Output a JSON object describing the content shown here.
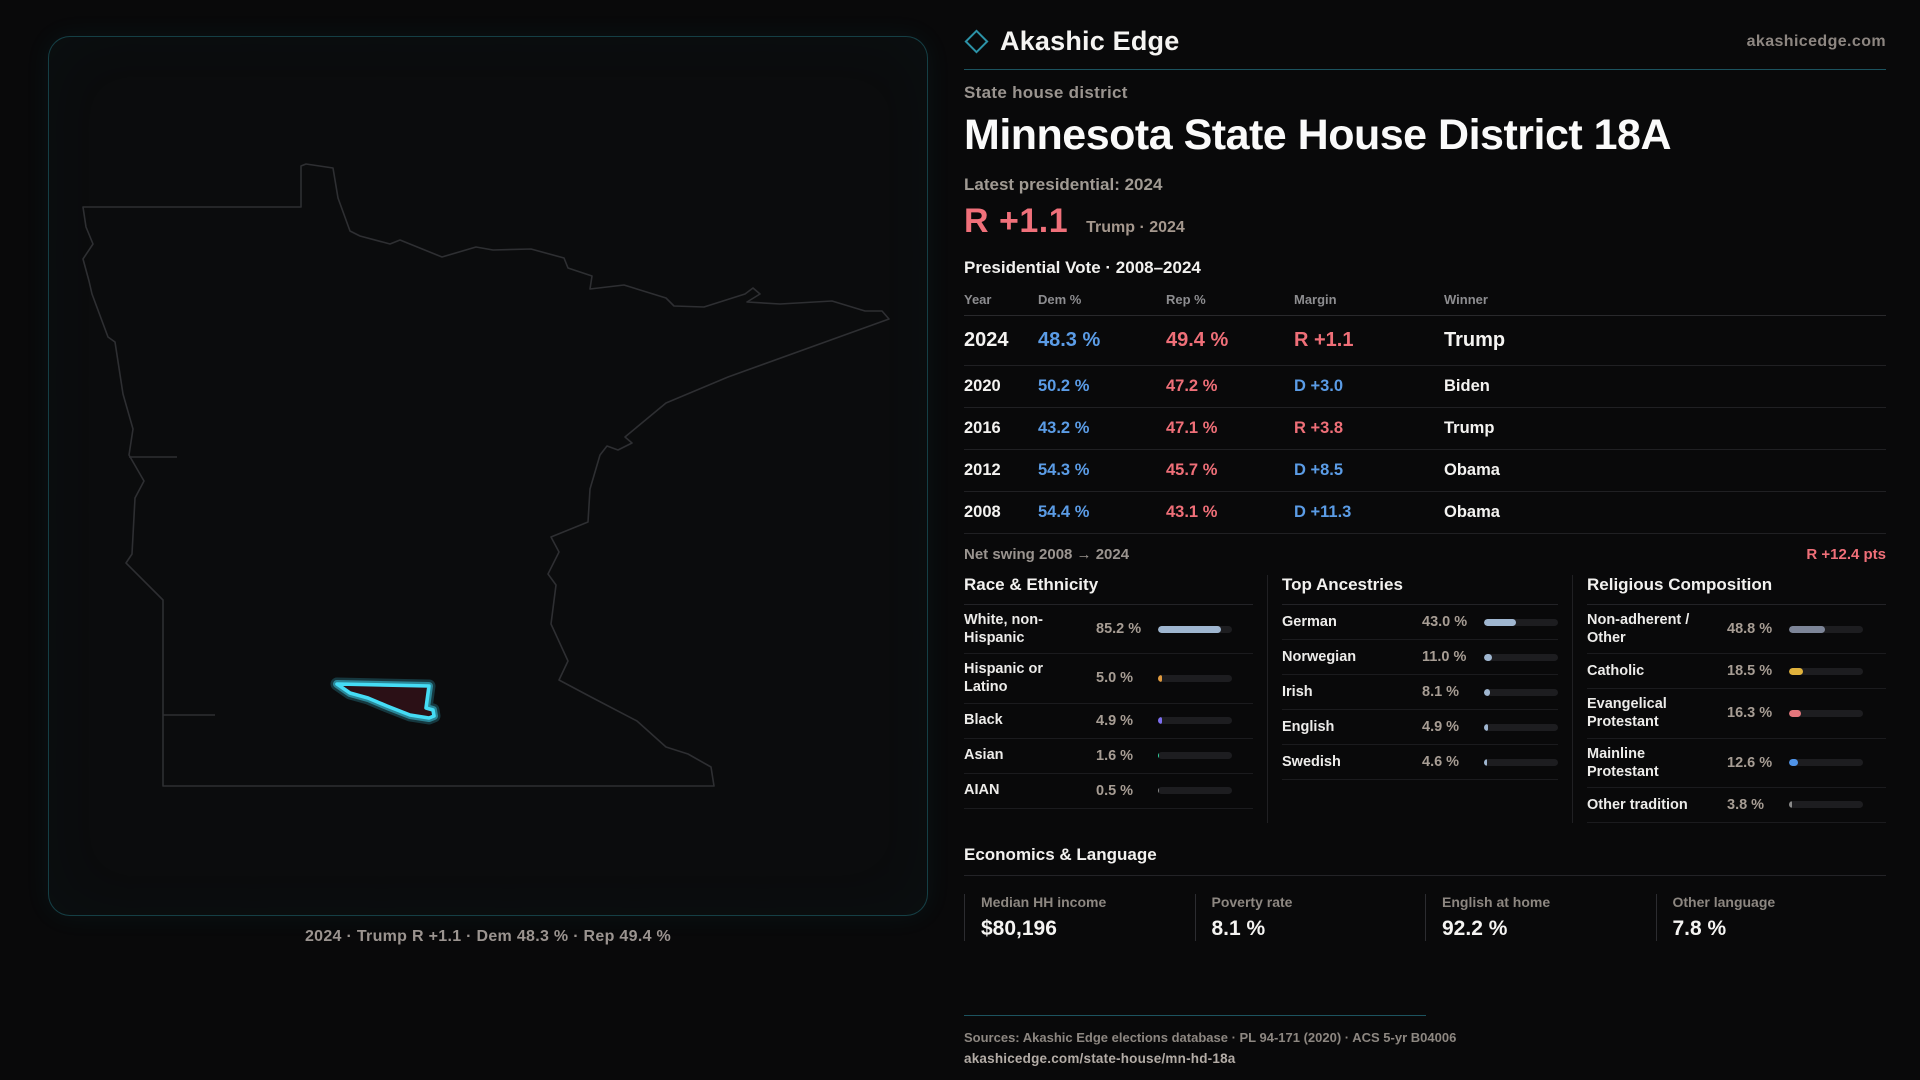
{
  "brand": {
    "name": "Akashic Edge",
    "site": "akashicedge.com",
    "logo_icon": "diamond-outline",
    "accent_teal": "#2c93a8",
    "accent_red": "#ef6f78",
    "accent_blue": "#5b9ce6"
  },
  "header": {
    "kicker": "State house district",
    "title": "Minnesota State House District 18A",
    "latest_label": "Latest presidential: 2024",
    "margin_value": "R +1.1",
    "margin_caption": "Trump · 2024"
  },
  "vote_table": {
    "title": "Presidential Vote · 2008–2024",
    "columns": {
      "year": "Year",
      "dem": "Dem %",
      "rep": "Rep %",
      "margin": "Margin",
      "winner": "Winner"
    },
    "rows": [
      {
        "year": "2024",
        "dem": "48.3 %",
        "rep": "49.4 %",
        "margin": "R +1.1",
        "party": "R",
        "winner": "Trump"
      },
      {
        "year": "2020",
        "dem": "50.2 %",
        "rep": "47.2 %",
        "margin": "D +3.0",
        "party": "D",
        "winner": "Biden"
      },
      {
        "year": "2016",
        "dem": "43.2 %",
        "rep": "47.1 %",
        "margin": "R +3.8",
        "party": "R",
        "winner": "Trump"
      },
      {
        "year": "2012",
        "dem": "54.3 %",
        "rep": "45.7 %",
        "margin": "D +8.5",
        "party": "D",
        "winner": "Obama"
      },
      {
        "year": "2008",
        "dem": "54.4 %",
        "rep": "43.1 %",
        "margin": "D +11.3",
        "party": "D",
        "winner": "Obama"
      }
    ]
  },
  "net_swing": {
    "label": "Net swing 2008 → 2024",
    "value": "R +12.4 pts"
  },
  "race": {
    "title": "Race & Ethnicity",
    "rows": [
      {
        "label": "White, non-Hispanic",
        "value": "85.2 %",
        "pct": 85.2,
        "color": "#9fb6d0"
      },
      {
        "label": "Hispanic or Latino",
        "value": "5.0 %",
        "pct": 5.0,
        "color": "#e09a3e"
      },
      {
        "label": "Black",
        "value": "4.9 %",
        "pct": 4.9,
        "color": "#7d6ef0"
      },
      {
        "label": "Asian",
        "value": "1.6 %",
        "pct": 1.6,
        "color": "#2fd4a0"
      },
      {
        "label": "AIAN",
        "value": "0.5 %",
        "pct": 0.5,
        "color": "#8a8a8a"
      }
    ]
  },
  "ancestries": {
    "title": "Top Ancestries",
    "rows": [
      {
        "label": "German",
        "value": "43.0 %",
        "pct": 43.0,
        "color": "#9fb6d0"
      },
      {
        "label": "Norwegian",
        "value": "11.0 %",
        "pct": 11.0,
        "color": "#9fb6d0"
      },
      {
        "label": "Irish",
        "value": "8.1 %",
        "pct": 8.1,
        "color": "#9fb6d0"
      },
      {
        "label": "English",
        "value": "4.9 %",
        "pct": 4.9,
        "color": "#9fb6d0"
      },
      {
        "label": "Swedish",
        "value": "4.6 %",
        "pct": 4.6,
        "color": "#9fb6d0"
      }
    ]
  },
  "religion": {
    "title": "Religious Composition",
    "rows": [
      {
        "label": "Non-adherent / Other",
        "value": "48.8 %",
        "pct": 48.8,
        "color": "#7d8598"
      },
      {
        "label": "Catholic",
        "value": "18.5 %",
        "pct": 18.5,
        "color": "#e0b23c"
      },
      {
        "label": "Evangelical Protestant",
        "value": "16.3 %",
        "pct": 16.3,
        "color": "#e4767c"
      },
      {
        "label": "Mainline Protestant",
        "value": "12.6 %",
        "pct": 12.6,
        "color": "#4f93e8"
      },
      {
        "label": "Other tradition",
        "value": "3.8 %",
        "pct": 3.8,
        "color": "#8a8a8a"
      }
    ]
  },
  "economics": {
    "title": "Economics & Language",
    "stats": [
      {
        "label": "Median HH income",
        "value": "$80,196"
      },
      {
        "label": "Poverty rate",
        "value": "8.1 %"
      },
      {
        "label": "English at home",
        "value": "92.2 %"
      },
      {
        "label": "Other language",
        "value": "7.8 %"
      }
    ]
  },
  "map": {
    "caption": "2024 · Trump R +1.1 · Dem 48.3 % · Rep 49.4 %",
    "district_color": "#45dcf5"
  },
  "footer": {
    "sources": "Sources: Akashic Edge elections database · PL 94-171 (2020) · ACS 5-yr B04006",
    "permalink": "akashicedge.com/state-house/mn-hd-18a"
  },
  "chart_data": [
    {
      "type": "table",
      "title": "Presidential Vote · 2008–2024",
      "columns": [
        "Year",
        "Dem %",
        "Rep %",
        "Margin",
        "Winner"
      ],
      "rows": [
        [
          2024,
          48.3,
          49.4,
          "R +1.1",
          "Trump"
        ],
        [
          2020,
          50.2,
          47.2,
          "D +3.0",
          "Biden"
        ],
        [
          2016,
          43.2,
          47.1,
          "R +3.8",
          "Trump"
        ],
        [
          2012,
          54.3,
          45.7,
          "D +8.5",
          "Obama"
        ],
        [
          2008,
          54.4,
          43.1,
          "D +11.3",
          "Obama"
        ]
      ],
      "annotations": [
        "Net swing 2008 → 2024: R +12.4 pts",
        "Latest presidential 2024: R +1.1 Trump"
      ]
    },
    {
      "type": "bar",
      "title": "Race & Ethnicity",
      "categories": [
        "White, non-Hispanic",
        "Hispanic or Latino",
        "Black",
        "Asian",
        "AIAN"
      ],
      "values": [
        85.2,
        5.0,
        4.9,
        1.6,
        0.5
      ],
      "unit": "%",
      "xlim": [
        0,
        100
      ],
      "orientation": "horizontal"
    },
    {
      "type": "bar",
      "title": "Top Ancestries",
      "categories": [
        "German",
        "Norwegian",
        "Irish",
        "English",
        "Swedish"
      ],
      "values": [
        43.0,
        11.0,
        8.1,
        4.9,
        4.6
      ],
      "unit": "%",
      "xlim": [
        0,
        100
      ],
      "orientation": "horizontal"
    },
    {
      "type": "bar",
      "title": "Religious Composition",
      "categories": [
        "Non-adherent / Other",
        "Catholic",
        "Evangelical Protestant",
        "Mainline Protestant",
        "Other tradition"
      ],
      "values": [
        48.8,
        18.5,
        16.3,
        12.6,
        3.8
      ],
      "unit": "%",
      "xlim": [
        0,
        100
      ],
      "orientation": "horizontal"
    },
    {
      "type": "bar",
      "title": "Economics & Language",
      "categories": [
        "Median HH income",
        "Poverty rate",
        "English at home",
        "Other language"
      ],
      "values": [
        80196,
        8.1,
        92.2,
        7.8
      ],
      "units": [
        "$",
        "%",
        "%",
        "%"
      ]
    }
  ]
}
